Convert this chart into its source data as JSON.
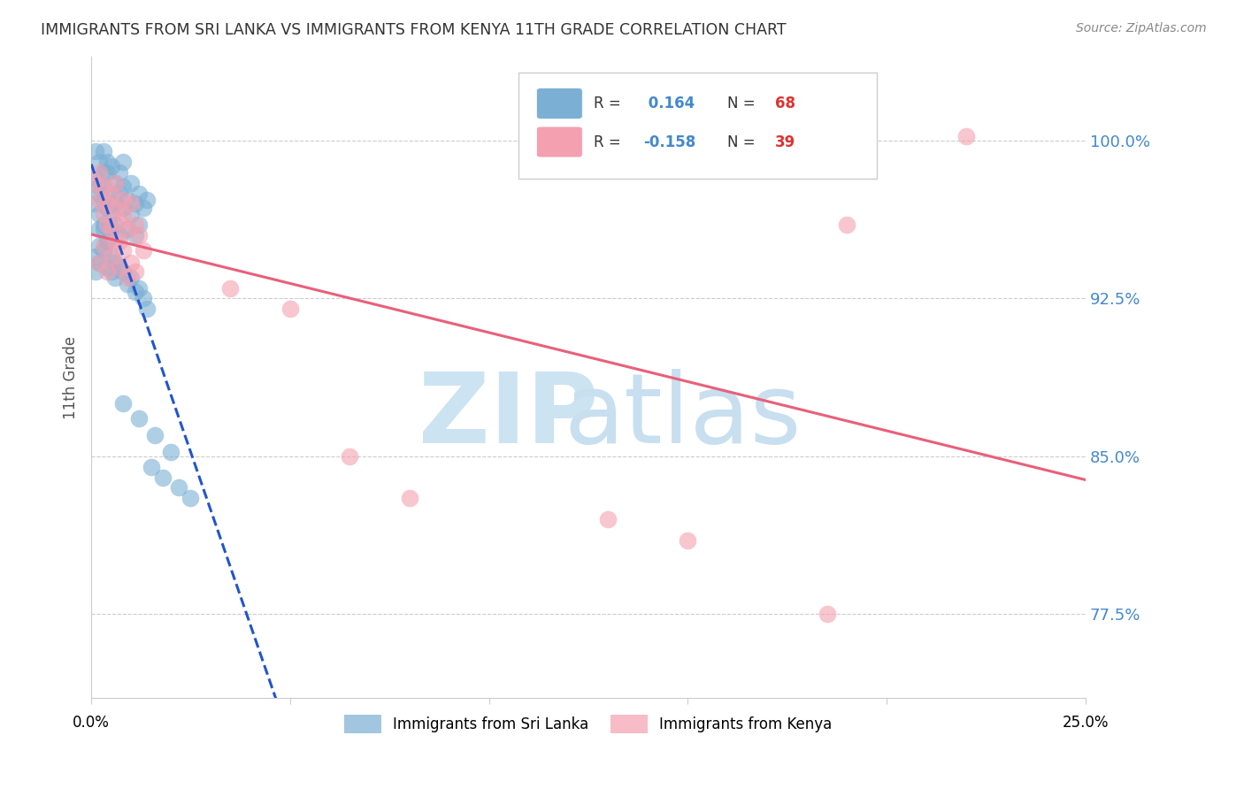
{
  "title": "IMMIGRANTS FROM SRI LANKA VS IMMIGRANTS FROM KENYA 11TH GRADE CORRELATION CHART",
  "source": "Source: ZipAtlas.com",
  "ylabel": "11th Grade",
  "y_ticks": [
    0.775,
    0.85,
    0.925,
    1.0
  ],
  "y_tick_labels": [
    "77.5%",
    "85.0%",
    "92.5%",
    "100.0%"
  ],
  "x_tick_labels": [
    "0.0%",
    "",
    "",
    "",
    "",
    "25.0%"
  ],
  "x_ticks": [
    0.0,
    0.05,
    0.1,
    0.15,
    0.2,
    0.25
  ],
  "xmin": 0.0,
  "xmax": 0.25,
  "ymin": 0.735,
  "ymax": 1.04,
  "legend_sri_lanka": "Immigrants from Sri Lanka",
  "legend_kenya": "Immigrants from Kenya",
  "R_sri_lanka": 0.164,
  "N_sri_lanka": 68,
  "R_kenya": -0.158,
  "N_kenya": 39,
  "color_sri_lanka": "#7bafd4",
  "color_kenya": "#f4a0b0",
  "line_color_sri_lanka": "#2255cc",
  "line_color_kenya": "#e8607a",
  "watermark_zip_color": "#cce3f2",
  "watermark_atlas_color": "#c8dff0",
  "grid_color": "#cccccc",
  "spine_color": "#cccccc",
  "tick_label_color": "#4488cc",
  "title_color": "#333333",
  "source_color": "#888888",
  "ylabel_color": "#555555",
  "legend_border_color": "#cccccc"
}
